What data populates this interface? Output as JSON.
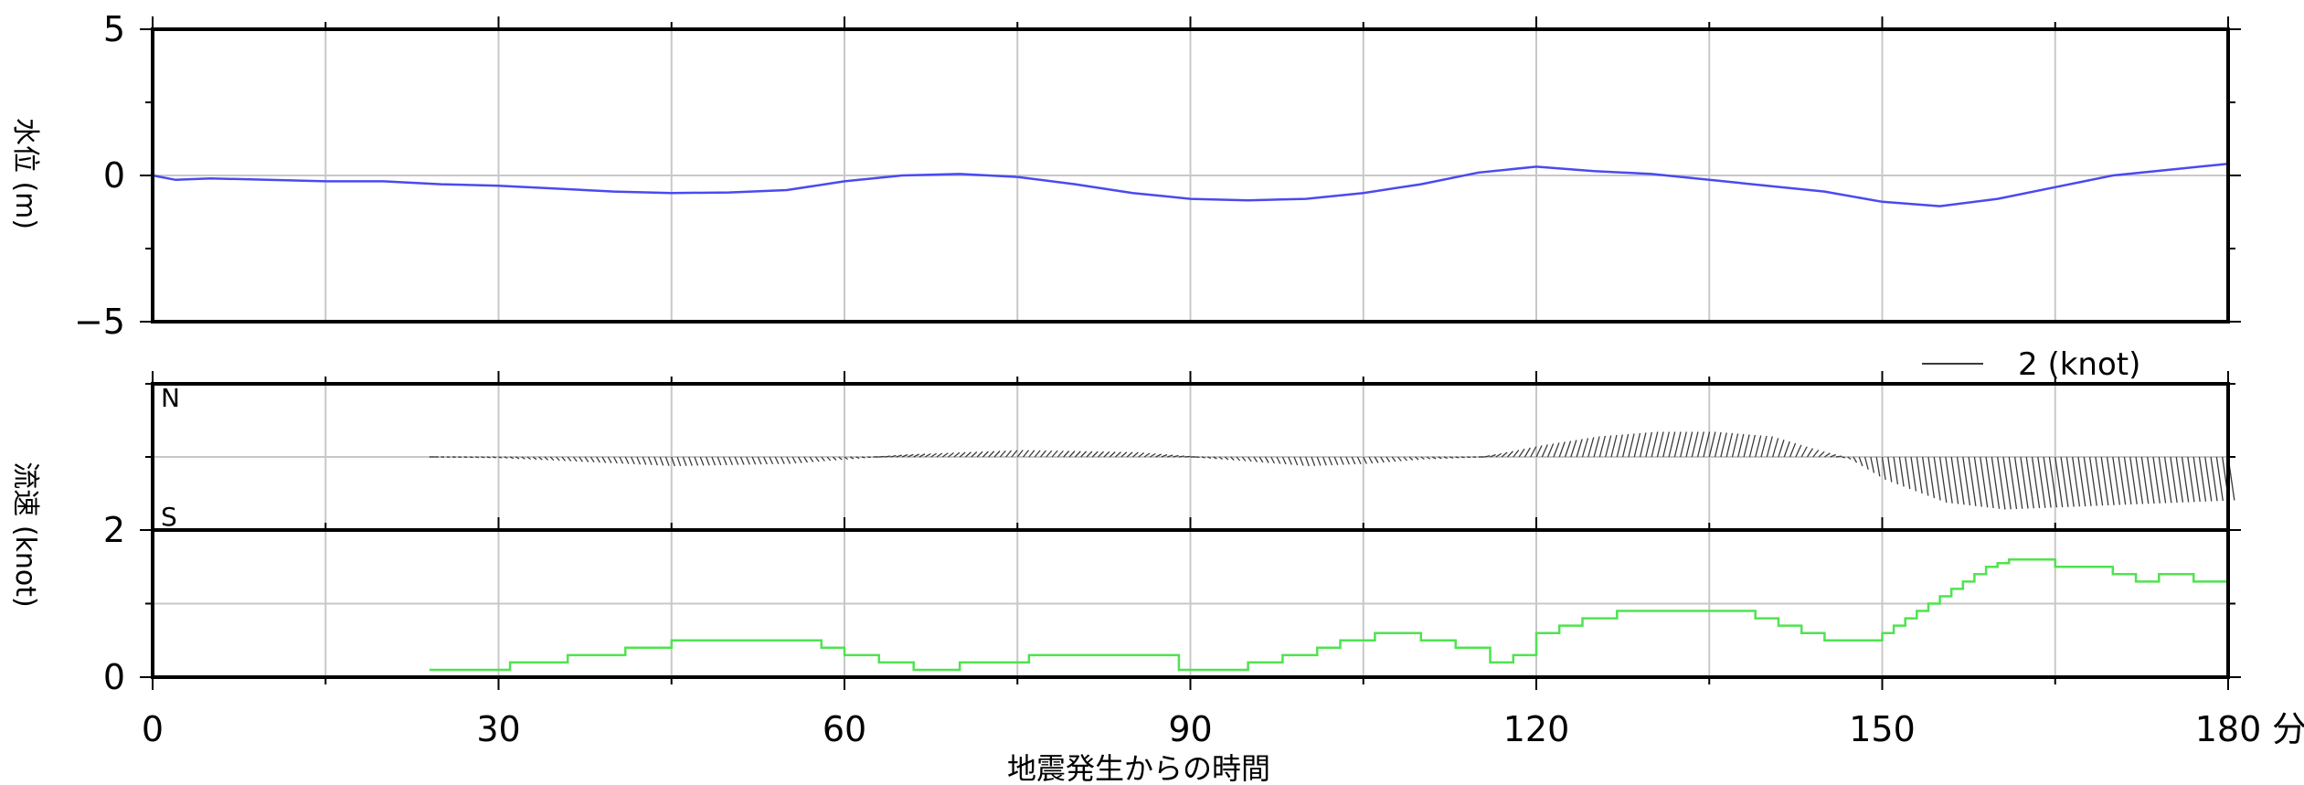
{
  "chart_data": [
    {
      "type": "line",
      "ylabel": "水位 (m)",
      "xlim": [
        0,
        180
      ],
      "ylim": [
        -5,
        5
      ],
      "yticks": [
        -5,
        0,
        5
      ],
      "grid": true,
      "colors": {
        "line": "#4a4af0"
      },
      "series": [
        {
          "x": [
            0,
            2,
            5,
            10,
            15,
            20,
            25,
            30,
            35,
            40,
            45,
            50,
            55,
            60,
            65,
            70,
            75,
            80,
            85,
            90,
            95,
            100,
            105,
            110,
            115,
            120,
            125,
            130,
            135,
            140,
            145,
            150,
            155,
            160,
            165,
            170,
            175,
            180
          ],
          "values": [
            0,
            -0.15,
            -0.1,
            -0.15,
            -0.2,
            -0.2,
            -0.3,
            -0.35,
            -0.45,
            -0.55,
            -0.6,
            -0.58,
            -0.5,
            -0.2,
            0,
            0.05,
            -0.05,
            -0.3,
            -0.6,
            -0.8,
            -0.85,
            -0.8,
            -0.6,
            -0.3,
            0.1,
            0.3,
            0.15,
            0.05,
            -0.15,
            -0.35,
            -0.55,
            -0.9,
            -1.05,
            -0.8,
            -0.4,
            0,
            0.2,
            0.4
          ]
        }
      ]
    },
    {
      "type": "vector",
      "ylabel": "流速 (knot)",
      "direction_labels": {
        "north": "N",
        "south": "S"
      },
      "scale_label": "2 (knot)",
      "x_start": 24,
      "x_end": 180,
      "colors": {
        "vectors": "#3a3a3a"
      },
      "north_component": {
        "x": [
          24,
          30,
          45,
          55,
          60,
          65,
          75,
          85,
          95,
          100,
          105,
          110,
          115,
          120,
          125,
          130,
          135,
          140,
          144,
          147,
          150,
          155,
          160,
          170,
          180
        ],
        "values": [
          0,
          -0.02,
          -0.2,
          -0.15,
          -0.05,
          0.05,
          0.15,
          0.1,
          -0.1,
          -0.2,
          -0.15,
          -0.05,
          0,
          0.25,
          0.45,
          0.55,
          0.55,
          0.45,
          0.15,
          -0.05,
          -0.5,
          -1.0,
          -1.15,
          -1.05,
          -0.95
        ]
      }
    },
    {
      "type": "line",
      "step": true,
      "xlim": [
        0,
        180
      ],
      "ylim": [
        0,
        2
      ],
      "yticks": [
        0,
        2
      ],
      "grid": true,
      "colors": {
        "line": "#4fe34f"
      },
      "series": [
        {
          "x": [
            24,
            31,
            36,
            41,
            45,
            55,
            58,
            60,
            63,
            66,
            70,
            76,
            82,
            85,
            89,
            93,
            95,
            98,
            101,
            103,
            106,
            108,
            110,
            113,
            116,
            118,
            120,
            122,
            124,
            127,
            139,
            141,
            143,
            145,
            148,
            150,
            151,
            152,
            153,
            154,
            155,
            156,
            157,
            158,
            159,
            160,
            161,
            165,
            170,
            172,
            174,
            177,
            180
          ],
          "values": [
            0.1,
            0.2,
            0.3,
            0.4,
            0.5,
            0.5,
            0.4,
            0.3,
            0.2,
            0.1,
            0.2,
            0.3,
            0.3,
            0.3,
            0.1,
            0.1,
            0.2,
            0.3,
            0.4,
            0.5,
            0.6,
            0.6,
            0.5,
            0.4,
            0.2,
            0.3,
            0.6,
            0.7,
            0.8,
            0.9,
            0.8,
            0.7,
            0.6,
            0.5,
            0.5,
            0.6,
            0.7,
            0.8,
            0.9,
            1.0,
            1.1,
            1.2,
            1.3,
            1.4,
            1.5,
            1.55,
            1.6,
            1.5,
            1.4,
            1.3,
            1.4,
            1.3,
            1.3
          ]
        }
      ]
    }
  ],
  "x_axis": {
    "ticks": [
      0,
      30,
      60,
      90,
      120,
      150,
      180
    ],
    "tick_labels": [
      "0",
      "30",
      "60",
      "90",
      "120",
      "150",
      "180"
    ],
    "unit": "分",
    "xlabel": "地震発生からの時間"
  }
}
